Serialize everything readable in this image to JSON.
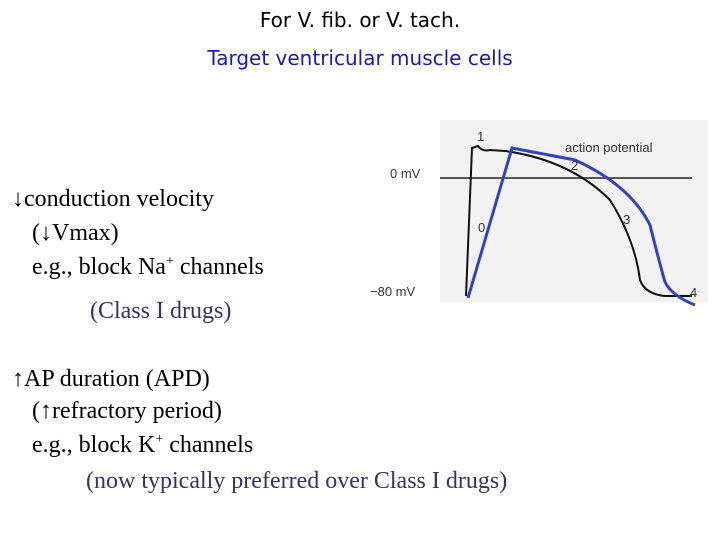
{
  "title": {
    "line1": "For V. fib. or V. tach.",
    "line2": "Target ventricular muscle cells"
  },
  "bullets": [
    {
      "symbol": "↓",
      "text": "conduction velocity",
      "detail": "(↓Vmax)",
      "example": [
        "e.g., block Na",
        "+",
        " channels"
      ],
      "note": "(Class I drugs)"
    },
    {
      "symbol": "↑",
      "text": "AP duration (APD)",
      "detail": "(↑refractory period)",
      "example": [
        "e.g., block K",
        "+",
        " channels"
      ],
      "note": "(now typically preferred over Class I drugs)"
    }
  ],
  "figure": {
    "caption": "action potential",
    "zero": "0 mV",
    "rest": "−80 mV",
    "phases": [
      "0",
      "1",
      "2",
      "3",
      "4"
    ]
  }
}
